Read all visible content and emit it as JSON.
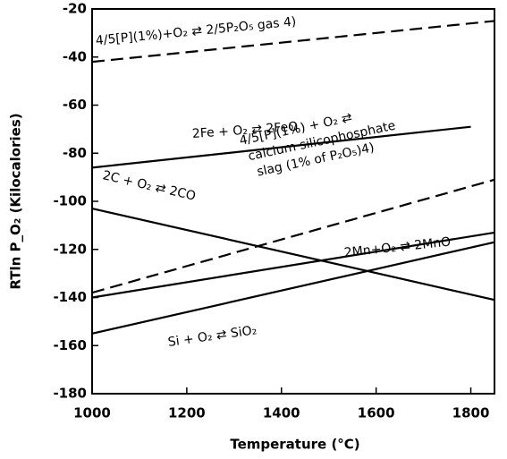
{
  "chart_data": {
    "type": "line",
    "xlabel": "Temperature (°C)",
    "ylabel": "RTln P_O₂ (Kilocalories)",
    "xlim": [
      1000,
      1850
    ],
    "xticks": [
      1000,
      1200,
      1400,
      1600,
      1800
    ],
    "ylim": [
      -180,
      -20
    ],
    "yticks": [
      -180,
      -160,
      -140,
      -120,
      -100,
      -80,
      -60,
      -40,
      -20
    ],
    "series": [
      {
        "name": [
          "4/5[P](1%)+O₂ ⇄ 2/5P₂O₅ gas 4)"
        ],
        "color": "#000000",
        "dash": true,
        "x": [
          1000,
          1850
        ],
        "values": [
          -42,
          -25
        ]
      },
      {
        "name": [
          "2Fe + O₂ ⇄ 2FeO"
        ],
        "color": "#000000",
        "dash": false,
        "x": [
          1000,
          1800
        ],
        "values": [
          -86,
          -69
        ]
      },
      {
        "name": [
          "4/5[P](1%) + O₂ ⇄",
          "calcium silicophosphate",
          "slag (1% of P₂O₅)4)"
        ],
        "color": "#000000",
        "dash": true,
        "x": [
          1000,
          1850
        ],
        "values": [
          -138,
          -91
        ]
      },
      {
        "name": [
          "2C + O₂ ⇄ 2CO"
        ],
        "color": "#000000",
        "dash": false,
        "x": [
          1000,
          1850
        ],
        "values": [
          -103,
          -141
        ]
      },
      {
        "name": [
          "2Mn+O₂ ⇄ 2MnO"
        ],
        "color": "#000000",
        "dash": false,
        "x": [
          1000,
          1850
        ],
        "values": [
          -140,
          -113
        ]
      },
      {
        "name": [
          "Si + O₂ ⇄ SiO₂"
        ],
        "color": "#000000",
        "dash": false,
        "x": [
          1000,
          1850
        ],
        "values": [
          -155,
          -117
        ]
      }
    ]
  }
}
